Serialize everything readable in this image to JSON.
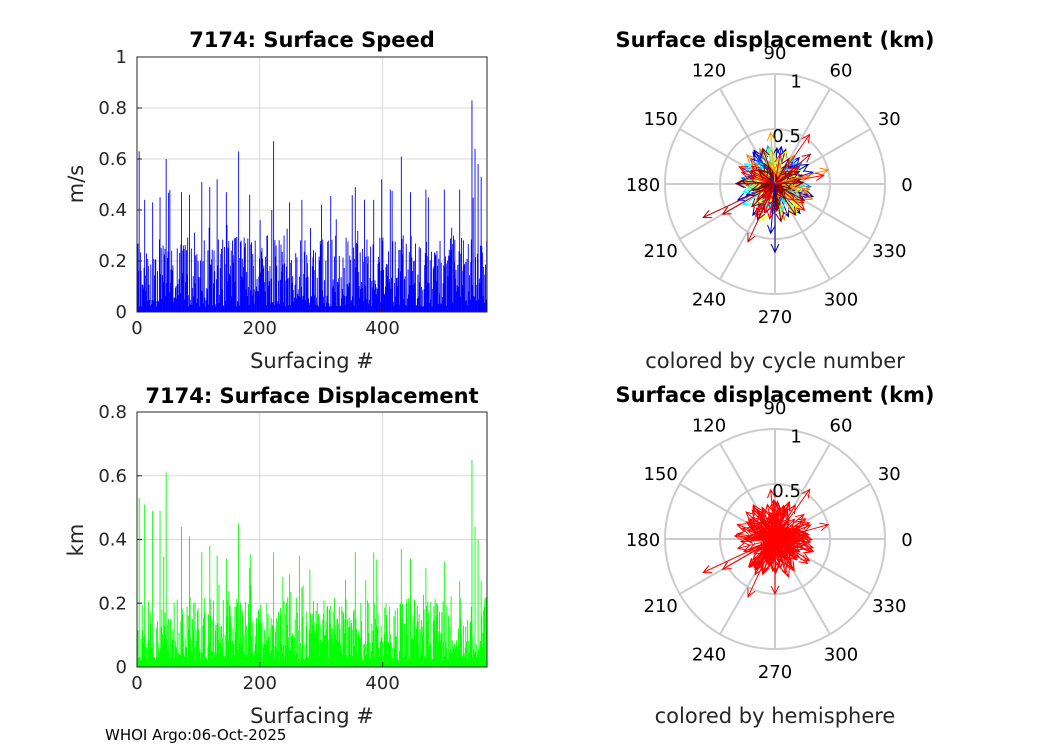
{
  "footer": "WHOI Argo:06-Oct-2025",
  "colors": {
    "speed_bars": "#0000ff",
    "displacement_bars": "#00ff00",
    "hemisphere_arrows": "#ff0000",
    "grid": "#d9d9d9",
    "polar_grid": "#cccccc"
  },
  "chart_data": [
    {
      "id": "speed",
      "type": "bar",
      "title": "7174: Surface Speed",
      "xlabel": "Surfacing #",
      "ylabel": "m/s",
      "xlim": [
        0,
        570
      ],
      "ylim": [
        0,
        1
      ],
      "xticks": [
        0,
        200,
        400
      ],
      "yticks": [
        0,
        0.2,
        0.4,
        0.6,
        0.8,
        1
      ],
      "ytick_labels": [
        "0",
        "0.2",
        "0.4",
        "0.6",
        "0.8",
        "1"
      ],
      "grid": true,
      "color": "#0000ff",
      "n_surfacings": 570,
      "peaks": [
        [
          3,
          0.63
        ],
        [
          12,
          0.44
        ],
        [
          25,
          0.43
        ],
        [
          37,
          0.45
        ],
        [
          47,
          0.6
        ],
        [
          72,
          0.47
        ],
        [
          85,
          0.46
        ],
        [
          105,
          0.51
        ],
        [
          118,
          0.49
        ],
        [
          130,
          0.52
        ],
        [
          145,
          0.47
        ],
        [
          165,
          0.63
        ],
        [
          183,
          0.46
        ],
        [
          200,
          0.36
        ],
        [
          222,
          0.67
        ],
        [
          248,
          0.43
        ],
        [
          268,
          0.44
        ],
        [
          300,
          0.42
        ],
        [
          355,
          0.49
        ],
        [
          370,
          0.44
        ],
        [
          385,
          0.44
        ],
        [
          398,
          0.52
        ],
        [
          412,
          0.48
        ],
        [
          430,
          0.61
        ],
        [
          445,
          0.47
        ],
        [
          470,
          0.48
        ],
        [
          500,
          0.48
        ],
        [
          525,
          0.48
        ],
        [
          545,
          0.83
        ],
        [
          550,
          0.64
        ],
        [
          555,
          0.58
        ],
        [
          560,
          0.53
        ]
      ],
      "typical_range": [
        0.02,
        0.3
      ]
    },
    {
      "id": "displacement",
      "type": "bar",
      "title": "7174: Surface Displacement",
      "xlabel": "Surfacing #",
      "ylabel": "km",
      "xlim": [
        0,
        570
      ],
      "ylim": [
        0,
        0.8
      ],
      "xticks": [
        0,
        200,
        400
      ],
      "yticks": [
        0,
        0.2,
        0.4,
        0.6,
        0.8
      ],
      "ytick_labels": [
        "0",
        "0.2",
        "0.4",
        "0.6",
        "0.8"
      ],
      "grid": true,
      "color": "#00ff00",
      "n_surfacings": 570,
      "peaks": [
        [
          3,
          0.53
        ],
        [
          12,
          0.51
        ],
        [
          25,
          0.49
        ],
        [
          37,
          0.49
        ],
        [
          47,
          0.61
        ],
        [
          72,
          0.44
        ],
        [
          85,
          0.41
        ],
        [
          105,
          0.36
        ],
        [
          118,
          0.38
        ],
        [
          130,
          0.35
        ],
        [
          145,
          0.34
        ],
        [
          165,
          0.45
        ],
        [
          183,
          0.31
        ],
        [
          222,
          0.36
        ],
        [
          248,
          0.29
        ],
        [
          268,
          0.25
        ],
        [
          355,
          0.36
        ],
        [
          385,
          0.36
        ],
        [
          430,
          0.37
        ],
        [
          445,
          0.34
        ],
        [
          470,
          0.31
        ],
        [
          500,
          0.33
        ],
        [
          525,
          0.27
        ],
        [
          545,
          0.65
        ],
        [
          550,
          0.44
        ],
        [
          555,
          0.4
        ],
        [
          560,
          0.27
        ]
      ],
      "typical_range": [
        0.02,
        0.22
      ]
    },
    {
      "id": "polar-cycle",
      "type": "polar",
      "title": "Surface displacement (km)",
      "xlabel": "colored by cycle number",
      "rlim": [
        0,
        1
      ],
      "rticks": [
        0.5,
        1
      ],
      "rtick_labels": [
        "0.5",
        "1"
      ],
      "angle_ticks": [
        0,
        30,
        60,
        90,
        120,
        150,
        180,
        210,
        240,
        270,
        300,
        330
      ],
      "colormap": [
        "#00008f",
        "#0000ff",
        "#0080ff",
        "#00ffff",
        "#80ff80",
        "#ffff00",
        "#ff8000",
        "#ff0000",
        "#800000"
      ],
      "highlight_vectors": [
        [
          205,
          0.72,
          "#cc0000"
        ],
        [
          210,
          0.55,
          "#cc0000"
        ],
        [
          245,
          0.58,
          "#cc0000"
        ],
        [
          270,
          0.62,
          "#00008f"
        ],
        [
          265,
          0.45,
          "#0000cc"
        ],
        [
          15,
          0.5,
          "#ff8000"
        ],
        [
          10,
          0.45,
          "#ff0000"
        ],
        [
          55,
          0.55,
          "#ff0000"
        ],
        [
          40,
          0.42,
          "#cc0000"
        ],
        [
          95,
          0.47,
          "#ffa000"
        ],
        [
          120,
          0.3,
          "#0040ff"
        ],
        [
          150,
          0.25,
          "#cc0000"
        ]
      ]
    },
    {
      "id": "polar-hemisphere",
      "type": "polar",
      "title": "Surface displacement (km)",
      "xlabel": "colored by hemisphere",
      "rlim": [
        0,
        1
      ],
      "rticks": [
        0.5,
        1
      ],
      "rtick_labels": [
        "0.5",
        "1"
      ],
      "angle_ticks": [
        0,
        30,
        60,
        90,
        120,
        150,
        180,
        210,
        240,
        270,
        300,
        330
      ],
      "color": "#ff0000",
      "highlight_vectors": [
        [
          205,
          0.72,
          "#ff0000"
        ],
        [
          210,
          0.55,
          "#ff0000"
        ],
        [
          245,
          0.58,
          "#ff0000"
        ],
        [
          270,
          0.5,
          "#ff0000"
        ],
        [
          15,
          0.5,
          "#ff0000"
        ],
        [
          55,
          0.55,
          "#ff0000"
        ],
        [
          95,
          0.45,
          "#ff0000"
        ],
        [
          120,
          0.3,
          "#ff0000"
        ],
        [
          150,
          0.25,
          "#ff0000"
        ],
        [
          300,
          0.3,
          "#ff0000"
        ]
      ]
    }
  ]
}
